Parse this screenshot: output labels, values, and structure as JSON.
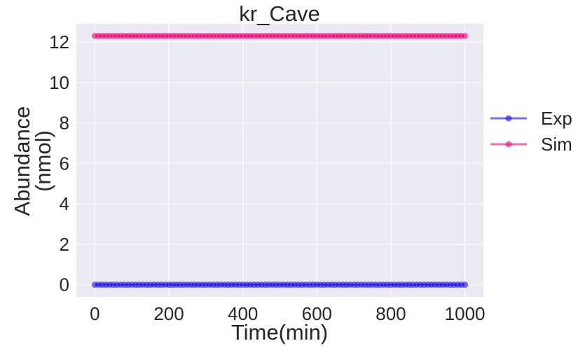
{
  "chart_data": {
    "type": "scatter",
    "title": "kr_Cave",
    "xlabel": "Time(min)",
    "ylabel_lines": [
      "Abundance",
      "(nmol)"
    ],
    "xlim": [
      -50,
      1050
    ],
    "ylim": [
      -0.6,
      12.9
    ],
    "xticks": [
      0,
      200,
      400,
      600,
      800,
      1000
    ],
    "yticks": [
      0,
      2,
      4,
      6,
      8,
      10,
      12
    ],
    "xtick_labels": [
      "0",
      "200",
      "400",
      "600",
      "800",
      "1000"
    ],
    "ytick_labels": [
      "0",
      "2",
      "4",
      "6",
      "8",
      "10",
      "12"
    ],
    "grid": true,
    "legend_position": "right, outside plot",
    "x": {
      "start": 0,
      "stop": 1000,
      "step": 10
    },
    "series": [
      {
        "name": "Exp",
        "color": "#1f10e8",
        "value": 0.0
      },
      {
        "name": "Sim",
        "color": "#f0067a",
        "value": 12.3
      }
    ]
  }
}
